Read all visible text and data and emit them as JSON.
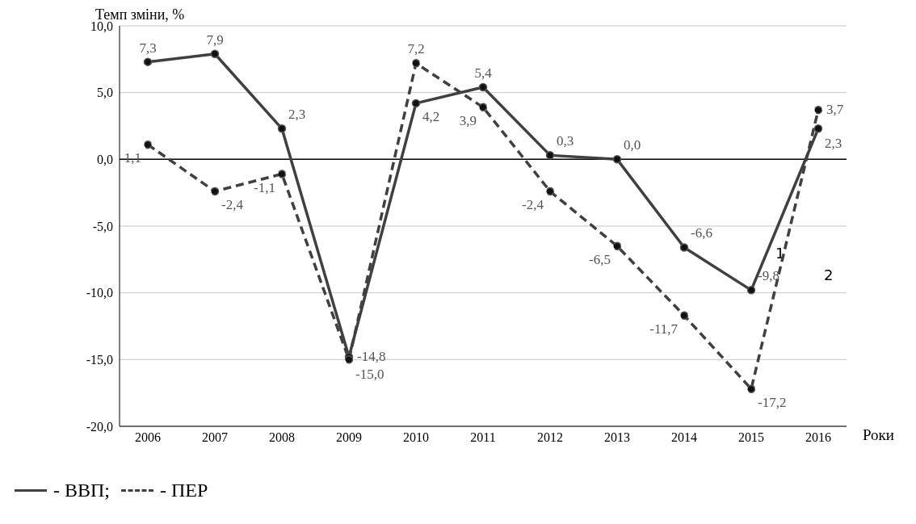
{
  "chart_data": {
    "type": "line",
    "ylabel": "Темп зміни, %",
    "xlabel": "Роки",
    "categories": [
      "2006",
      "2007",
      "2008",
      "2009",
      "2010",
      "2011",
      "2012",
      "2013",
      "2014",
      "2015",
      "2016"
    ],
    "series": [
      {
        "name": "- ВВП;",
        "color": "#404040",
        "line_style": "solid",
        "values": [
          7.3,
          7.9,
          2.3,
          -14.8,
          4.2,
          5.4,
          0.3,
          0.0,
          -6.6,
          -9.8,
          2.3
        ],
        "value_labels": [
          "7,3",
          "7,9",
          "2,3",
          "-14,8",
          "4,2",
          "5,4",
          "0,3",
          "0,0",
          "-6,6",
          "-9,8",
          "2,3"
        ]
      },
      {
        "name": "- ПЕР",
        "color": "#404040",
        "line_style": "dashed",
        "values": [
          1.1,
          -2.4,
          -1.1,
          -15.0,
          7.2,
          3.9,
          -2.4,
          -6.5,
          -11.7,
          -17.2,
          3.7
        ],
        "value_labels": [
          "1,1",
          "-2,4",
          "-1,1",
          "-15,0",
          "7,2",
          "3,9",
          "-2,4",
          "-6,5",
          "-11,7",
          "-17,2",
          "3,7"
        ]
      }
    ],
    "ylim": [
      -20,
      10
    ],
    "yticks": [
      {
        "value": -20,
        "label": "-20,0"
      },
      {
        "value": -15,
        "label": "-15,0"
      },
      {
        "value": -10,
        "label": "-10,0"
      },
      {
        "value": -5,
        "label": "-5,0"
      },
      {
        "value": 0,
        "label": "0,0"
      },
      {
        "value": 5,
        "label": "5,0"
      },
      {
        "value": 10,
        "label": "10,0"
      }
    ],
    "ref_lines": [
      {
        "axis": "y",
        "value": 0,
        "color": "#000000"
      }
    ],
    "annotations": [
      "1",
      "2"
    ],
    "marker": "circle",
    "grid": "y",
    "legend": "bottom"
  }
}
